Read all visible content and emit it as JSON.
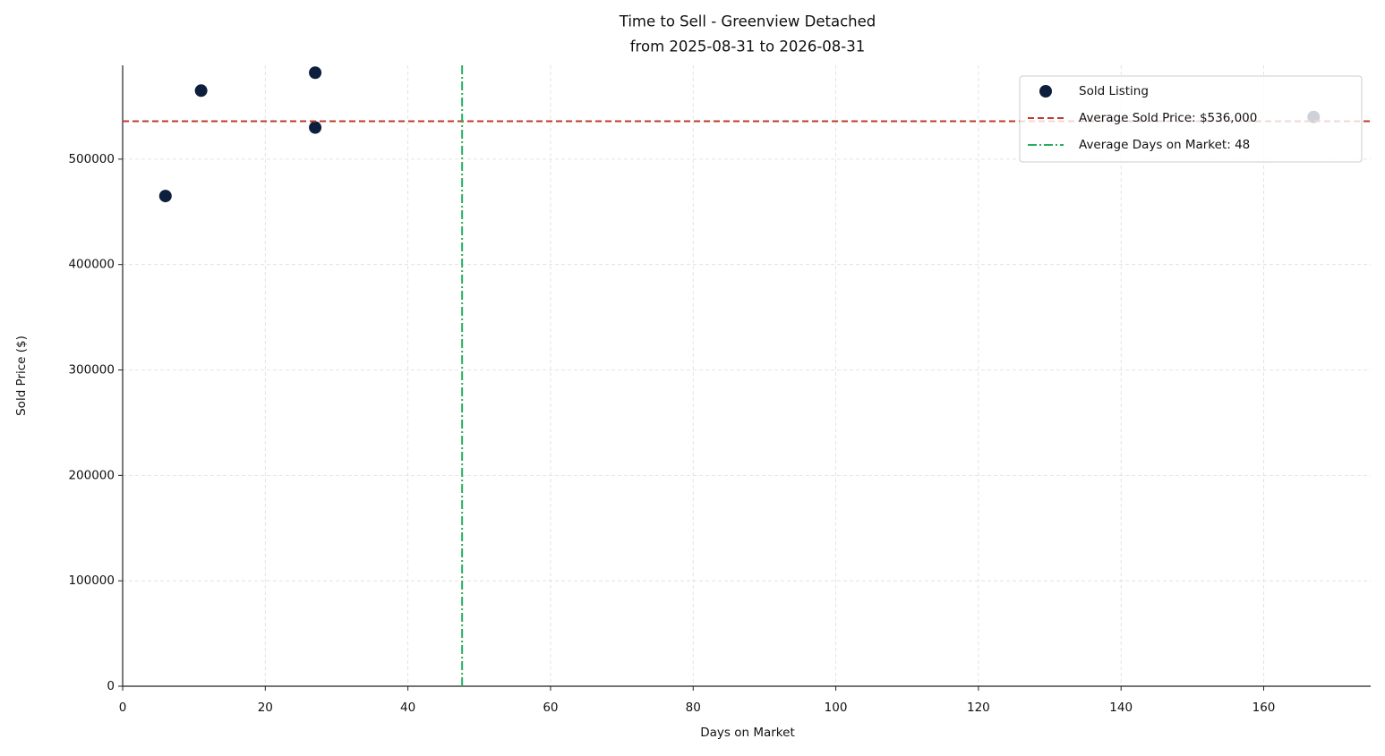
{
  "chart_data": {
    "type": "scatter",
    "title": "Time to Sell - Greenview Detached",
    "subtitle": "from 2025-08-31 to 2026-08-31",
    "x_label": "Days on Market",
    "y_label": "Sold Price ($)",
    "xlim": [
      0,
      175
    ],
    "ylim": [
      0,
      589000
    ],
    "xticks": [
      0,
      20,
      40,
      60,
      80,
      100,
      120,
      140,
      160
    ],
    "yticks": [
      0,
      100000,
      200000,
      300000,
      400000,
      500000
    ],
    "grid": true,
    "legend": "upper right",
    "series": [
      {
        "name": "Sold Listing",
        "color": "#0d1f3c",
        "x": [
          6,
          11,
          27,
          27,
          167
        ],
        "values": [
          465000,
          565000,
          582000,
          530000,
          540000
        ]
      }
    ],
    "hlines": [
      {
        "name": "Average Sold Price: $536,000",
        "value": 536000,
        "color": "#c0392b"
      }
    ],
    "vlines": [
      {
        "name": "Average Days on Market: 48",
        "value": 47.6,
        "color": "#27ae60"
      }
    ]
  }
}
